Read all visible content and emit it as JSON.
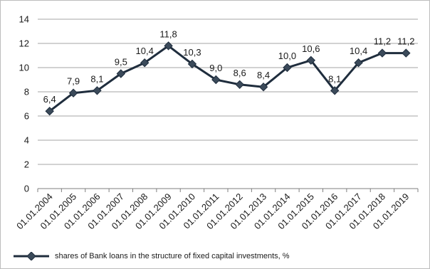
{
  "chart_data": {
    "type": "line",
    "title": "",
    "xlabel": "",
    "ylabel": "",
    "categories": [
      "01.01.2004",
      "01.01.2005",
      "01.01.2006",
      "01.01.2007",
      "01.01.2008",
      "01.01.2009",
      "01.01.2010",
      "01.01.2011",
      "01.01.2012",
      "01.01.2013",
      "01.01.2014",
      "01.01.2015",
      "01.01.2016",
      "01.01.2017",
      "01.01.2018",
      "01.01.2019"
    ],
    "series": [
      {
        "name": "shares of Bank loans in the structure of fixed capital investments, %",
        "values": [
          6.4,
          7.9,
          8.1,
          9.5,
          10.4,
          11.8,
          10.3,
          9.0,
          8.6,
          8.4,
          10.0,
          10.6,
          8.1,
          10.4,
          11.2,
          11.2
        ],
        "data_labels": [
          "6,4",
          "7,9",
          "8,1",
          "9,5",
          "10,4",
          "11,8",
          "10,3",
          "9,0",
          "8,6",
          "8,4",
          "10,0",
          "10,6",
          "8,1",
          "10,4",
          "11,2",
          "11,2"
        ],
        "color": "#1f2d3d",
        "marker": "diamond"
      }
    ],
    "ylim": [
      0,
      14
    ],
    "yticks": [
      0,
      2,
      4,
      6,
      8,
      10,
      12,
      14
    ],
    "grid": true,
    "gridline_color": "#a6a6a6",
    "legend_position": "bottom-left"
  }
}
